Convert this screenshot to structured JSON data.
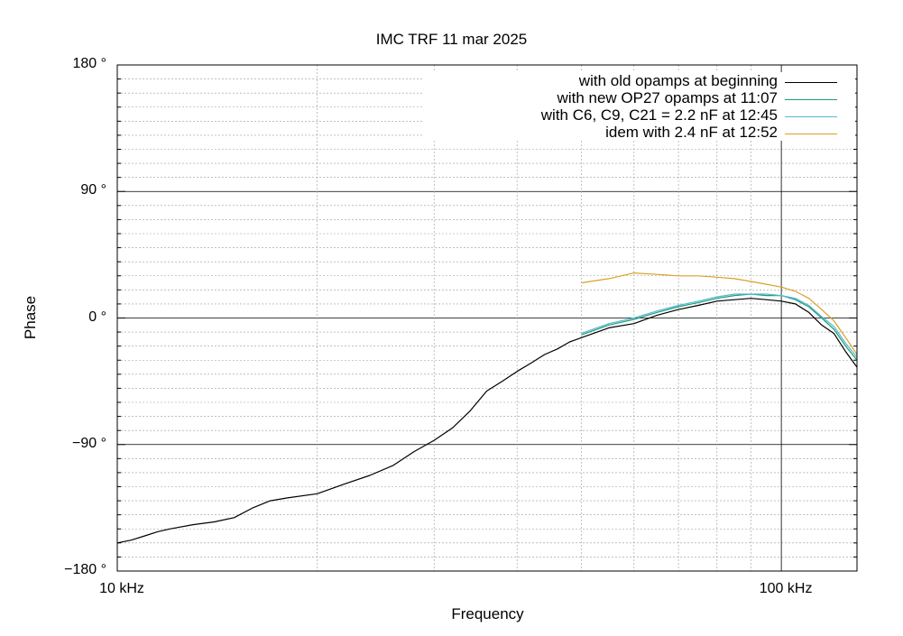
{
  "chart_data": {
    "type": "line",
    "title": "IMC TRF 11 mar 2025",
    "xlabel": "Frequency",
    "ylabel": "Phase",
    "x_scale": "log",
    "xlim_hz": [
      10000,
      130000
    ],
    "ylim_deg": [
      -180,
      180
    ],
    "xticks": [
      {
        "value": 10000,
        "label": "10 kHz"
      },
      {
        "value": 100000,
        "label": "100 kHz"
      }
    ],
    "yticks": [
      {
        "value": 180,
        "label": "180 °"
      },
      {
        "value": 90,
        "label": "90 °"
      },
      {
        "value": 0,
        "label": "0 °"
      },
      {
        "value": -90,
        "label": "−90 °"
      },
      {
        "value": -180,
        "label": "−180 °"
      }
    ],
    "grid": true,
    "legend_position": "top-right",
    "series": [
      {
        "name": "with old opamps at beginning",
        "color": "#000000",
        "x": [
          10000,
          10500,
          11000,
          11500,
          12000,
          13000,
          14000,
          15000,
          16000,
          17000,
          18000,
          20000,
          22000,
          24000,
          26000,
          28000,
          30000,
          32000,
          34000,
          36000,
          38000,
          40000,
          42000,
          44000,
          46000,
          48000,
          50000,
          55000,
          60000,
          65000,
          70000,
          75000,
          80000,
          85000,
          90000,
          95000,
          100000,
          105000,
          110000,
          115000,
          120000,
          125000,
          130000
        ],
        "y": [
          -160,
          -158,
          -155,
          -152,
          -150,
          -147,
          -145,
          -142,
          -135,
          -130,
          -128,
          -125,
          -118,
          -112,
          -105,
          -95,
          -87,
          -78,
          -66,
          -52,
          -45,
          -38,
          -32,
          -26,
          -22,
          -17,
          -14,
          -7,
          -4,
          2,
          6,
          9,
          12,
          13,
          14,
          13,
          12,
          10,
          4,
          -5,
          -11,
          -24,
          -35
        ]
      },
      {
        "name": "with new OP27 opamps at 11:07",
        "color": "#1a9e77",
        "x": [
          50000,
          55000,
          60000,
          65000,
          70000,
          75000,
          80000,
          85000,
          90000,
          95000,
          100000,
          105000,
          110000,
          115000,
          120000,
          125000,
          130000
        ],
        "y": [
          -12,
          -5,
          -1,
          4,
          8,
          11,
          14,
          16,
          17,
          16,
          16,
          13,
          8,
          0,
          -8,
          -20,
          -30
        ]
      },
      {
        "name": "with C6, C9, C21 = 2.2 nF at  12:45",
        "color": "#59b7d4",
        "x": [
          50000,
          55000,
          60000,
          65000,
          70000,
          75000,
          80000,
          85000,
          90000,
          95000,
          100000,
          105000,
          110000,
          115000,
          120000,
          125000,
          130000
        ],
        "y": [
          -11,
          -4,
          0,
          5,
          9,
          12,
          15,
          17,
          17,
          17,
          16,
          14,
          9,
          1,
          -6,
          -18,
          -28
        ]
      },
      {
        "name": "idem with 2.4 nF at 12:52",
        "color": "#d8a126",
        "x": [
          50000,
          55000,
          60000,
          65000,
          70000,
          75000,
          80000,
          85000,
          90000,
          95000,
          100000,
          105000,
          110000,
          115000,
          120000,
          125000,
          130000
        ],
        "y": [
          25,
          28,
          32,
          31,
          30,
          30,
          29,
          28,
          26,
          24,
          22,
          19,
          14,
          6,
          -2,
          -14,
          -26
        ]
      }
    ]
  }
}
